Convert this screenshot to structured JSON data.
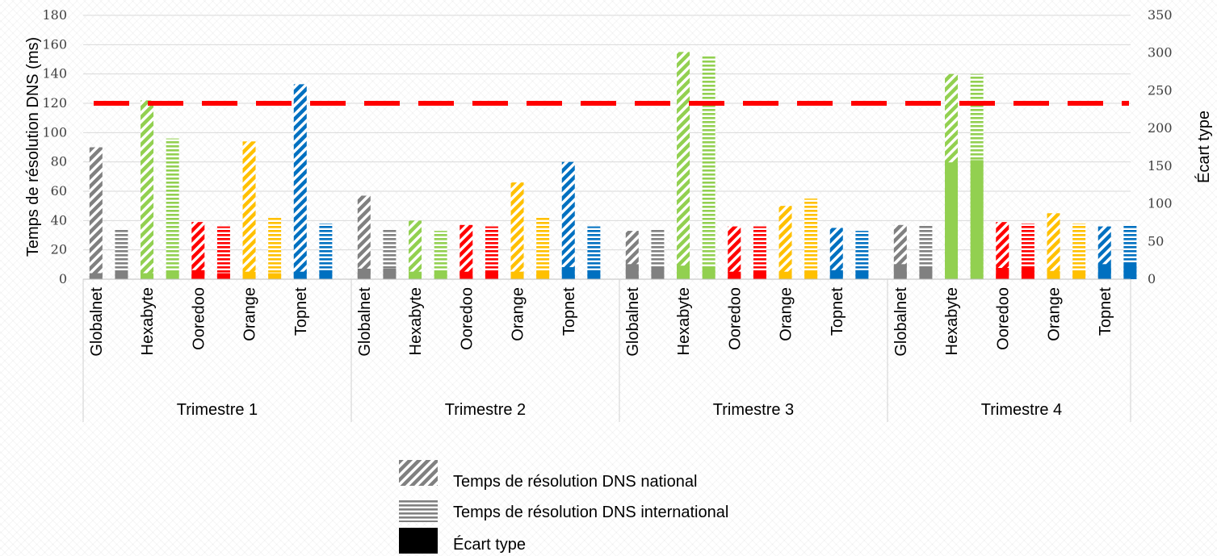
{
  "chart_data": {
    "type": "bar",
    "ylabel": "Temps de résolution DNS (ms)",
    "y2label": "Écart type",
    "ylim": [
      0,
      180
    ],
    "y2lim": [
      0,
      350
    ],
    "yticks": [
      0,
      20,
      40,
      60,
      80,
      100,
      120,
      140,
      160,
      180
    ],
    "y2ticks": [
      0,
      50,
      100,
      150,
      200,
      250,
      300,
      350
    ],
    "reference_line": {
      "value": 120,
      "axis": "left",
      "color": "#ff0000",
      "style": "dashed"
    },
    "groups": [
      "Trimestre 1",
      "Trimestre 2",
      "Trimestre 3",
      "Trimestre 4"
    ],
    "categories": [
      "Globalnet",
      "Hexabyte",
      "Ooredoo",
      "Orange",
      "Topnet"
    ],
    "category_colors": {
      "Globalnet": "#808080",
      "Hexabyte": "#92d050",
      "Ooredoo": "#ff0000",
      "Orange": "#ffc000",
      "Topnet": "#0070c0"
    },
    "series": [
      {
        "name": "Temps de résolution DNS national",
        "pattern": "diagonal",
        "axis": "left",
        "values": [
          [
            90,
            122,
            39,
            94,
            133
          ],
          [
            57,
            40,
            37,
            66,
            80
          ],
          [
            33,
            155,
            36,
            50,
            35
          ],
          [
            37,
            140,
            39,
            45,
            36
          ]
        ]
      },
      {
        "name": "Temps de résolution DNS international",
        "pattern": "horizontal",
        "axis": "left",
        "values": [
          [
            34,
            96,
            36,
            42,
            38
          ],
          [
            34,
            33,
            36,
            43,
            36
          ],
          [
            34,
            153,
            36,
            55,
            33
          ],
          [
            37,
            140,
            38,
            38,
            37
          ]
        ]
      },
      {
        "name": "Écart type",
        "pattern": "solid",
        "axis": "right",
        "values": [
          [
            8,
            10,
            8,
            10,
            12,
            8,
            10,
            8,
            10,
            12
          ],
          [
            14,
            14,
            10,
            10,
            10,
            10,
            10,
            10,
            16,
            12
          ],
          [
            20,
            16,
            18,
            16,
            10,
            10,
            10,
            10,
            12,
            12
          ],
          [
            20,
            17,
            155,
            158,
            15,
            15,
            11,
            11,
            20,
            20
          ]
        ]
      }
    ],
    "legend": {
      "position": "bottom",
      "entries": [
        "Temps de résolution DNS national",
        "Temps de résolution DNS international",
        "Écart type"
      ]
    }
  }
}
